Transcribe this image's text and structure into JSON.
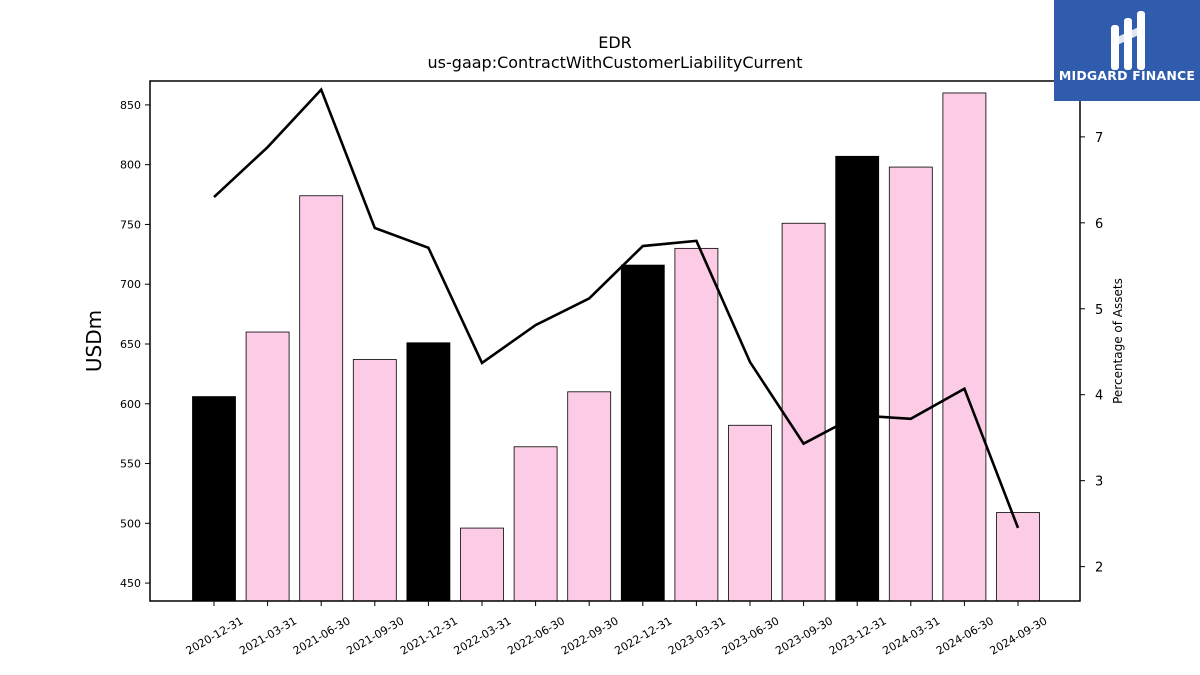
{
  "brand": {
    "name": "MIDGARD FINANCE",
    "bg_color": "#2f5cad"
  },
  "chart_data": {
    "type": "bar",
    "title": "EDR",
    "subtitle": "us-gaap:ContractWithCustomerLiabilityCurrent",
    "ylabel": "USDm",
    "y2label": "Percentage of Assets",
    "ylim": [
      435,
      870
    ],
    "y2lim": [
      1.6,
      7.65
    ],
    "yticks": [
      450,
      500,
      550,
      600,
      650,
      700,
      750,
      800,
      850
    ],
    "y2ticks": [
      2,
      3,
      4,
      5,
      6,
      7
    ],
    "categories": [
      "2020-12-31",
      "2021-03-31",
      "2021-06-30",
      "2021-09-30",
      "2021-12-31",
      "2022-03-31",
      "2022-06-30",
      "2022-09-30",
      "2022-12-31",
      "2023-03-31",
      "2023-06-30",
      "2023-09-30",
      "2023-12-31",
      "2024-03-31",
      "2024-06-30",
      "2024-09-30"
    ],
    "series": [
      {
        "type": "bar",
        "axis": "left",
        "values": [
          606,
          660,
          774,
          637,
          651,
          496,
          564,
          610,
          716,
          730,
          582,
          751,
          807,
          798,
          860,
          509
        ],
        "colors": [
          "#000000",
          "#fccbe6",
          "#fccbe6",
          "#fccbe6",
          "#000000",
          "#fccbe6",
          "#fccbe6",
          "#fccbe6",
          "#000000",
          "#fccbe6",
          "#fccbe6",
          "#fccbe6",
          "#000000",
          "#fccbe6",
          "#fccbe6",
          "#fccbe6"
        ]
      },
      {
        "type": "line",
        "axis": "right",
        "color": "#000000",
        "values": [
          6.3,
          6.88,
          7.55,
          5.94,
          5.71,
          4.37,
          4.81,
          5.12,
          5.73,
          5.79,
          4.38,
          3.43,
          3.76,
          3.72,
          4.07,
          2.45
        ]
      }
    ],
    "grid": false,
    "legend": "none"
  }
}
